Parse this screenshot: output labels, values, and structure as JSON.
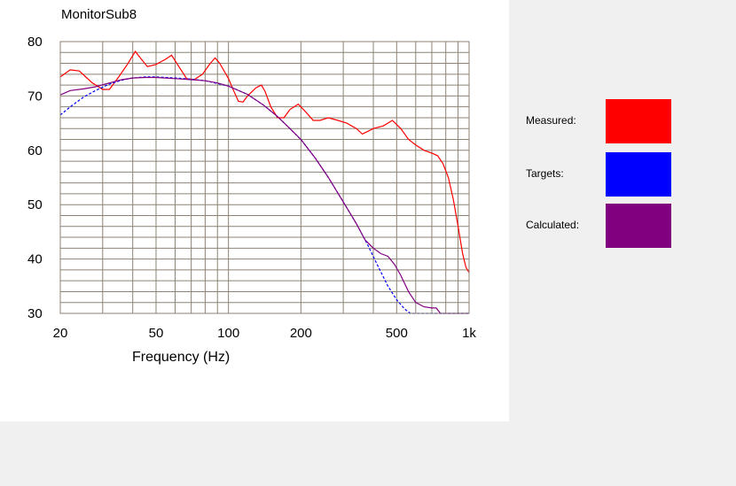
{
  "chart_data": {
    "type": "line",
    "title": "MonitorSub8",
    "xlabel": "Frequency (Hz)",
    "ylabel": "",
    "x_scale": "log",
    "xlim": [
      20,
      1000
    ],
    "ylim": [
      30,
      80
    ],
    "x_ticks": [
      {
        "value": 20,
        "label": "20"
      },
      {
        "value": 50,
        "label": "50"
      },
      {
        "value": 100,
        "label": "100"
      },
      {
        "value": 200,
        "label": "200"
      },
      {
        "value": 500,
        "label": "500"
      },
      {
        "value": 1000,
        "label": "1k"
      }
    ],
    "y_ticks": [
      {
        "value": 80,
        "label": "80"
      },
      {
        "value": 70,
        "label": "70"
      },
      {
        "value": 60,
        "label": "60"
      },
      {
        "value": 50,
        "label": "50"
      },
      {
        "value": 40,
        "label": "40"
      },
      {
        "value": 30,
        "label": "30"
      }
    ],
    "grid": true,
    "grid_color": "#8c8273",
    "legend_position": "right",
    "series": [
      {
        "name": "Measured",
        "color": "#ff0000",
        "style": "solid",
        "points": [
          [
            20,
            73.5
          ],
          [
            22,
            74.8
          ],
          [
            24,
            74.6
          ],
          [
            27,
            72.5
          ],
          [
            30,
            71.2
          ],
          [
            32,
            71.2
          ],
          [
            35,
            73.5
          ],
          [
            38,
            75.8
          ],
          [
            41,
            78.2
          ],
          [
            43,
            77.0
          ],
          [
            46,
            75.4
          ],
          [
            50,
            75.8
          ],
          [
            55,
            76.8
          ],
          [
            58,
            77.5
          ],
          [
            62,
            75.5
          ],
          [
            67,
            73.2
          ],
          [
            72,
            73.0
          ],
          [
            78,
            74.0
          ],
          [
            84,
            76.0
          ],
          [
            88,
            77.0
          ],
          [
            92,
            76.0
          ],
          [
            100,
            73.2
          ],
          [
            105,
            71.0
          ],
          [
            110,
            69.0
          ],
          [
            115,
            68.9
          ],
          [
            120,
            70.0
          ],
          [
            130,
            71.5
          ],
          [
            137,
            72.0
          ],
          [
            142,
            70.8
          ],
          [
            150,
            68.0
          ],
          [
            160,
            66.0
          ],
          [
            170,
            66.0
          ],
          [
            180,
            67.5
          ],
          [
            195,
            68.5
          ],
          [
            210,
            67.0
          ],
          [
            225,
            65.5
          ],
          [
            240,
            65.5
          ],
          [
            260,
            66.0
          ],
          [
            285,
            65.5
          ],
          [
            310,
            65.0
          ],
          [
            340,
            64.0
          ],
          [
            360,
            63.0
          ],
          [
            380,
            63.5
          ],
          [
            400,
            64.0
          ],
          [
            440,
            64.5
          ],
          [
            480,
            65.5
          ],
          [
            520,
            64.0
          ],
          [
            560,
            62.0
          ],
          [
            600,
            61.0
          ],
          [
            650,
            60.0
          ],
          [
            700,
            59.5
          ],
          [
            740,
            59.0
          ],
          [
            780,
            57.5
          ],
          [
            820,
            55.0
          ],
          [
            860,
            51.0
          ],
          [
            900,
            46.0
          ],
          [
            940,
            41.0
          ],
          [
            970,
            38.5
          ],
          [
            1000,
            37.5
          ]
        ]
      },
      {
        "name": "Targets",
        "color": "#0000ff",
        "style": "dashed",
        "points": [
          [
            20,
            66.5
          ],
          [
            22,
            68.0
          ],
          [
            25,
            69.8
          ],
          [
            28,
            71.0
          ],
          [
            32,
            72.2
          ],
          [
            36,
            72.9
          ],
          [
            40,
            73.3
          ],
          [
            45,
            73.5
          ],
          [
            50,
            73.5
          ],
          [
            60,
            73.3
          ],
          [
            70,
            73.1
          ],
          [
            80,
            72.8
          ],
          [
            90,
            72.3
          ],
          [
            100,
            71.8
          ],
          [
            120,
            70.3
          ],
          [
            140,
            68.3
          ],
          [
            160,
            66.2
          ],
          [
            180,
            64.0
          ],
          [
            200,
            62.0
          ],
          [
            230,
            58.5
          ],
          [
            260,
            55.0
          ],
          [
            300,
            50.5
          ],
          [
            340,
            46.5
          ],
          [
            380,
            42.5
          ],
          [
            420,
            38.5
          ],
          [
            460,
            35.0
          ],
          [
            500,
            32.5
          ],
          [
            540,
            30.8
          ],
          [
            570,
            30.0
          ],
          [
            1000,
            30.0
          ]
        ]
      },
      {
        "name": "Calculated",
        "color": "#800080",
        "style": "solid",
        "points": [
          [
            20,
            70.2
          ],
          [
            22,
            71.0
          ],
          [
            25,
            71.3
          ],
          [
            28,
            71.7
          ],
          [
            32,
            72.4
          ],
          [
            36,
            73.0
          ],
          [
            40,
            73.3
          ],
          [
            45,
            73.4
          ],
          [
            50,
            73.4
          ],
          [
            60,
            73.2
          ],
          [
            70,
            73.0
          ],
          [
            80,
            72.8
          ],
          [
            90,
            72.4
          ],
          [
            100,
            71.8
          ],
          [
            120,
            70.3
          ],
          [
            140,
            68.3
          ],
          [
            160,
            66.2
          ],
          [
            180,
            64.0
          ],
          [
            200,
            62.0
          ],
          [
            230,
            58.5
          ],
          [
            260,
            55.0
          ],
          [
            300,
            50.5
          ],
          [
            340,
            46.5
          ],
          [
            370,
            43.5
          ],
          [
            400,
            42.0
          ],
          [
            430,
            41.0
          ],
          [
            460,
            40.5
          ],
          [
            490,
            39.0
          ],
          [
            520,
            37.0
          ],
          [
            560,
            34.0
          ],
          [
            600,
            32.0
          ],
          [
            650,
            31.2
          ],
          [
            700,
            31.0
          ],
          [
            730,
            31.0
          ],
          [
            760,
            30.0
          ],
          [
            1000,
            30.0
          ]
        ]
      }
    ]
  },
  "legend": [
    {
      "label": "Measured:",
      "color": "#ff0000"
    },
    {
      "label": "Targets:",
      "color": "#0000ff"
    },
    {
      "label": "Calculated:",
      "color": "#800080"
    }
  ]
}
